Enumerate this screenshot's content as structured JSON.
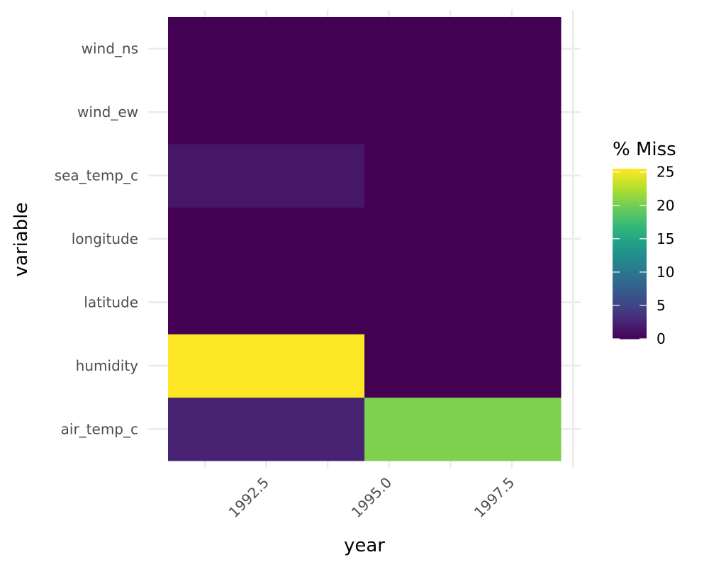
{
  "chart_data": {
    "type": "heatmap",
    "xlabel": "year",
    "ylabel": "variable",
    "x_range": [
      1990.5,
      1998.5
    ],
    "x_ticks": [
      1992.5,
      1995.0,
      1997.5
    ],
    "x_tick_labels": [
      "1992.5",
      "1995.0",
      "1997.5"
    ],
    "variables": [
      "air_temp_c",
      "humidity",
      "latitude",
      "longitude",
      "sea_temp_c",
      "wind_ew",
      "wind_ns"
    ],
    "columns": [
      {
        "x_from": 1990.5,
        "x_to": 1994.5
      },
      {
        "x_from": 1994.5,
        "x_to": 1998.5
      }
    ],
    "cells": [
      {
        "variable": "air_temp_c",
        "column": 0,
        "value": 2.5
      },
      {
        "variable": "air_temp_c",
        "column": 1,
        "value": 20.5
      },
      {
        "variable": "humidity",
        "column": 0,
        "value": 25.5
      },
      {
        "variable": "humidity",
        "column": 1,
        "value": 0
      },
      {
        "variable": "latitude",
        "column": 0,
        "value": 0
      },
      {
        "variable": "latitude",
        "column": 1,
        "value": 0
      },
      {
        "variable": "longitude",
        "column": 0,
        "value": 0
      },
      {
        "variable": "longitude",
        "column": 1,
        "value": 0
      },
      {
        "variable": "sea_temp_c",
        "column": 0,
        "value": 1.5
      },
      {
        "variable": "sea_temp_c",
        "column": 1,
        "value": 0
      },
      {
        "variable": "wind_ew",
        "column": 0,
        "value": 0
      },
      {
        "variable": "wind_ew",
        "column": 1,
        "value": 0
      },
      {
        "variable": "wind_ns",
        "column": 0,
        "value": 0
      },
      {
        "variable": "wind_ns",
        "column": 1,
        "value": 0
      }
    ],
    "legend": {
      "title": "% Miss",
      "placement": "right",
      "min": 0,
      "max": 25.5,
      "ticks": [
        0,
        5,
        10,
        15,
        20,
        25
      ],
      "tick_labels": [
        "0",
        "5",
        "10",
        "15",
        "20",
        "25"
      ]
    },
    "colormap": "viridis",
    "grid": true
  }
}
